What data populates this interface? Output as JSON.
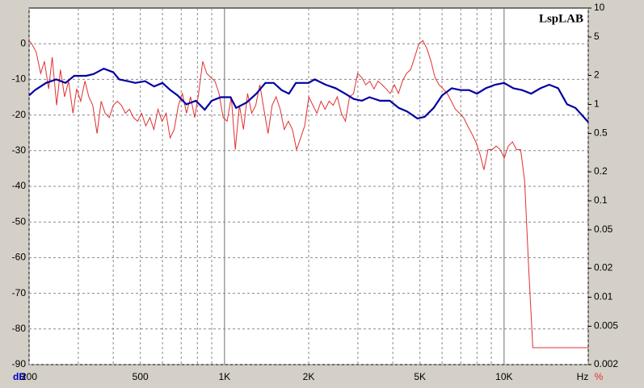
{
  "chart_data": {
    "type": "line",
    "watermark": "LspLAB",
    "ylabel": "dB",
    "xlabel": "Hz",
    "y2label": "%",
    "xlog": true,
    "y2log": true,
    "grid": true,
    "xlim": [
      200,
      20000
    ],
    "xticks": [
      200,
      500,
      {
        "value": 1000,
        "label": "1K"
      },
      {
        "value": 2000,
        "label": "2K"
      },
      {
        "value": 5000,
        "label": "5K"
      },
      {
        "value": 10000,
        "label": "10K"
      }
    ],
    "xminor": [
      300,
      400,
      600,
      700,
      800,
      900,
      3000,
      4000,
      6000,
      7000,
      8000,
      9000,
      20000
    ],
    "ylim": [
      -90,
      10
    ],
    "yticks": [
      0,
      -10,
      -20,
      -30,
      -40,
      -50,
      -60,
      -70,
      -80,
      -90
    ],
    "y2lim": [
      0.002,
      10
    ],
    "y2ticks": [
      10,
      5,
      2,
      1,
      0.5,
      0.2,
      0.1,
      0.05,
      0.02,
      0.01,
      0.005,
      0.002
    ],
    "series": [
      {
        "color": "#0000a0",
        "axis": "y",
        "x": [
          200,
          210,
          230,
          250,
          270,
          290,
          320,
          340,
          370,
          400,
          420,
          450,
          480,
          520,
          560,
          600,
          640,
          680,
          730,
          790,
          850,
          900,
          970,
          1050,
          1100,
          1200,
          1300,
          1400,
          1500,
          1600,
          1700,
          1800,
          2000,
          2100,
          2300,
          2500,
          2700,
          2900,
          3100,
          3300,
          3600,
          3900,
          4200,
          4500,
          4900,
          5200,
          5600,
          6000,
          6500,
          7000,
          7500,
          8000,
          8600,
          9300,
          10000,
          10800,
          11600,
          12500,
          13500,
          14500,
          15600,
          16800,
          18000,
          20000
        ],
        "values": [
          -14.5,
          -13,
          -11,
          -10,
          -11,
          -9,
          -9,
          -8.5,
          -7,
          -8,
          -10,
          -10.5,
          -11,
          -10.5,
          -12,
          -11,
          -13,
          -14.5,
          -17,
          -16,
          -18.5,
          -16,
          -15,
          -15,
          -18,
          -16.5,
          -14,
          -11,
          -11,
          -13,
          -14,
          -11,
          -11,
          -10,
          -11.5,
          -12.5,
          -14,
          -15.5,
          -16,
          -15,
          -16,
          -16,
          -18,
          -19,
          -21,
          -20.5,
          -18,
          -14.5,
          -12.5,
          -13,
          -13,
          -14,
          -12.5,
          -11.5,
          -11,
          -12.5,
          -13,
          -14,
          -12.5,
          -11.5,
          -12.5,
          -17,
          -18,
          -22
        ]
      },
      {
        "color": "#e03030",
        "axis": "y2",
        "x": [
          200,
          205,
          212,
          220,
          227,
          235,
          242,
          251,
          259,
          268,
          277,
          287,
          296,
          306,
          317,
          327,
          338,
          350,
          362,
          374,
          387,
          400,
          414,
          428,
          442,
          457,
          473,
          489,
          505,
          523,
          541,
          559,
          578,
          598,
          618,
          639,
          661,
          684,
          707,
          731,
          756,
          782,
          808,
          836,
          864,
          894,
          924,
          956,
          989,
          1022,
          1057,
          1093,
          1131,
          1169,
          1209,
          1251,
          1293,
          1338,
          1383,
          1431,
          1480,
          1530,
          1582,
          1636,
          1692,
          1750,
          1810,
          1872,
          1936,
          2002,
          2070,
          2141,
          2214,
          2289,
          2367,
          2448,
          2532,
          2618,
          2707,
          2800,
          2895,
          2994,
          3096,
          3202,
          3311,
          3424,
          3541,
          3662,
          3787,
          3916,
          4049,
          4188,
          4330,
          4478,
          4631,
          4789,
          4952,
          5121,
          5296,
          5476,
          5663,
          5856,
          6056,
          6263,
          6476,
          6697,
          6926,
          7162,
          7406,
          7659,
          7920,
          8190,
          8470,
          8759,
          9057,
          9366,
          9686,
          10016,
          10358,
          10711,
          11077,
          11455,
          11846,
          12250,
          12668,
          20000
        ],
        "values": [
          4.6,
          4.2,
          3.5,
          2.1,
          2.8,
          1.45,
          3.1,
          0.98,
          2.3,
          1.2,
          1.75,
          0.81,
          1.45,
          1.08,
          1.75,
          1.2,
          0.98,
          0.5,
          1.08,
          0.81,
          0.73,
          0.98,
          1.08,
          0.98,
          0.81,
          0.89,
          0.73,
          0.67,
          0.81,
          0.6,
          0.73,
          0.55,
          0.89,
          0.67,
          0.81,
          0.45,
          0.55,
          0.98,
          1.3,
          0.81,
          1.2,
          0.73,
          1.3,
          2.8,
          2.1,
          1.9,
          1.75,
          1.3,
          0.73,
          0.67,
          1.2,
          0.34,
          0.98,
          0.55,
          1.3,
          0.81,
          0.98,
          1.6,
          0.89,
          0.5,
          0.98,
          1.2,
          0.89,
          0.55,
          0.67,
          0.55,
          0.34,
          0.45,
          0.6,
          1.2,
          0.98,
          0.81,
          1.08,
          0.89,
          1.08,
          0.98,
          1.2,
          0.81,
          0.67,
          1.2,
          1.3,
          2.1,
          1.9,
          1.6,
          1.75,
          1.45,
          1.75,
          1.6,
          1.45,
          1.3,
          1.6,
          1.3,
          1.75,
          2.1,
          2.3,
          3.1,
          4.2,
          4.6,
          3.8,
          2.8,
          1.9,
          1.6,
          1.45,
          1.3,
          1.08,
          0.89,
          0.81,
          0.73,
          0.6,
          0.5,
          0.41,
          0.31,
          0.21,
          0.34,
          0.34,
          0.37,
          0.34,
          0.28,
          0.37,
          0.41,
          0.34,
          0.34,
          0.16,
          0.02,
          0.003,
          0.003
        ]
      }
    ]
  }
}
